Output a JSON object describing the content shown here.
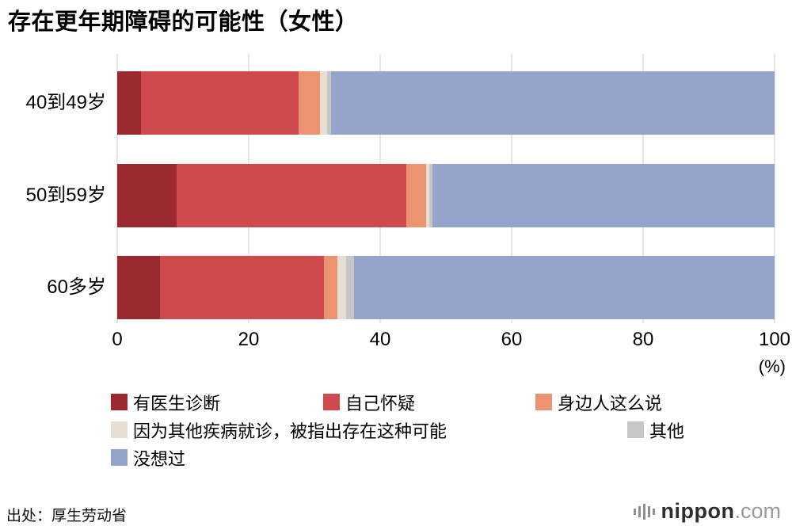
{
  "title": "存在更年期障碍的可能性（女性）",
  "source": "出处：厚生劳动省",
  "logo": {
    "name": "nippon",
    "tld": ".com"
  },
  "chart_data": {
    "type": "bar",
    "stacked": true,
    "orientation": "horizontal",
    "title": "存在更年期障碍的可能性（女性）",
    "categories": [
      "40到49岁",
      "50到59岁",
      "60多岁"
    ],
    "series": [
      {
        "name": "有医生诊断",
        "color": "#9a2a2e",
        "values": [
          3.6,
          9.0,
          6.5
        ]
      },
      {
        "name": "自己怀疑",
        "color": "#ce4a4e",
        "values": [
          24.0,
          35.0,
          25.0
        ]
      },
      {
        "name": "身边人这么说",
        "color": "#ec9472",
        "values": [
          3.3,
          3.0,
          2.0
        ]
      },
      {
        "name": "因为其他疾病就诊，被指出存在这种可能",
        "color": "#e8dfd3",
        "values": [
          1.0,
          0.5,
          1.3
        ]
      },
      {
        "name": "其他",
        "color": "#c7c7c7",
        "values": [
          0.6,
          0.5,
          1.2
        ]
      },
      {
        "name": "没想过",
        "color": "#95a4ca",
        "values": [
          67.5,
          52.0,
          64.0
        ]
      }
    ],
    "xlabel": "(%)",
    "xticks": [
      0,
      20,
      40,
      60,
      80,
      100
    ],
    "xlim": [
      0,
      100
    ],
    "grid": true,
    "grid_color": "#cccccc",
    "legend_position": "bottom"
  }
}
